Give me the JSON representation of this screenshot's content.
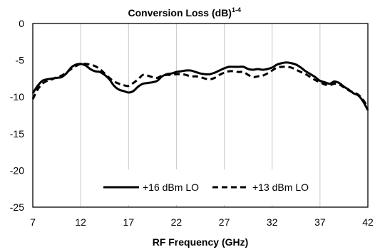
{
  "chart_data": {
    "type": "line",
    "title": "Conversion Loss (dB)",
    "title_superscript": "1-4",
    "xlabel": "RF Frequency (GHz)",
    "ylabel": "",
    "xlim": [
      7,
      42
    ],
    "ylim": [
      -25,
      0
    ],
    "x_ticks": [
      "7",
      "12",
      "17",
      "22",
      "27",
      "32",
      "37",
      "42"
    ],
    "y_ticks": [
      "0",
      "-5",
      "-10",
      "-15",
      "-20",
      "-25"
    ],
    "grid": "vertical",
    "legend_position": "lower-center",
    "series": [
      {
        "name": "+16 dBm LO",
        "style": "solid",
        "color": "#000000",
        "x": [
          7,
          7.5,
          8,
          8.5,
          9,
          9.5,
          10,
          10.5,
          11,
          11.5,
          12,
          12.5,
          13,
          13.5,
          14,
          14.5,
          15,
          15.5,
          16,
          16.5,
          17,
          17.5,
          18,
          18.5,
          19,
          19.5,
          20,
          20.5,
          21,
          21.5,
          22,
          22.5,
          23,
          23.5,
          24,
          24.5,
          25,
          25.5,
          26,
          26.5,
          27,
          27.5,
          28,
          28.5,
          29,
          29.5,
          30,
          30.5,
          31,
          31.5,
          32,
          32.5,
          33,
          33.5,
          34,
          34.5,
          35,
          35.5,
          36,
          36.5,
          37,
          37.5,
          38,
          38.5,
          39,
          39.5,
          40,
          40.5,
          41,
          41.5,
          42
        ],
        "y": [
          -9.5,
          -8.5,
          -7.8,
          -7.6,
          -7.5,
          -7.4,
          -7.3,
          -6.8,
          -6.0,
          -5.6,
          -5.5,
          -5.7,
          -6.2,
          -6.5,
          -6.6,
          -7.0,
          -7.6,
          -8.5,
          -9.0,
          -9.2,
          -9.4,
          -9.2,
          -8.6,
          -8.2,
          -8.1,
          -8.0,
          -7.8,
          -7.2,
          -6.9,
          -6.8,
          -6.6,
          -6.5,
          -6.4,
          -6.4,
          -6.6,
          -6.8,
          -6.9,
          -6.9,
          -6.7,
          -6.4,
          -6.1,
          -5.9,
          -5.9,
          -5.9,
          -5.9,
          -6.2,
          -6.3,
          -6.2,
          -6.3,
          -6.2,
          -6.0,
          -5.6,
          -5.4,
          -5.3,
          -5.4,
          -5.6,
          -6.0,
          -6.5,
          -6.9,
          -7.3,
          -7.8,
          -8.0,
          -8.2,
          -7.9,
          -8.1,
          -8.6,
          -9.0,
          -9.5,
          -9.8,
          -10.6,
          -11.8
        ]
      },
      {
        "name": "+13 dBm LO",
        "style": "dashed",
        "color": "#000000",
        "x": [
          7,
          7.5,
          8,
          8.5,
          9,
          9.5,
          10,
          10.5,
          11,
          11.5,
          12,
          12.5,
          13,
          13.5,
          14,
          14.5,
          15,
          15.5,
          16,
          16.5,
          17,
          17.5,
          18,
          18.5,
          19,
          19.5,
          20,
          20.5,
          21,
          21.5,
          22,
          22.5,
          23,
          23.5,
          24,
          24.5,
          25,
          25.5,
          26,
          26.5,
          27,
          27.5,
          28,
          28.5,
          29,
          29.5,
          30,
          30.5,
          31,
          31.5,
          32,
          32.5,
          33,
          33.5,
          34,
          34.5,
          35,
          35.5,
          36,
          36.5,
          37,
          37.5,
          38,
          38.5,
          39,
          39.5,
          40,
          40.5,
          41,
          41.5,
          42
        ],
        "y": [
          -10.3,
          -9.0,
          -8.2,
          -7.8,
          -7.6,
          -7.3,
          -7.1,
          -6.7,
          -6.2,
          -5.8,
          -5.5,
          -5.5,
          -5.6,
          -5.8,
          -6.2,
          -6.8,
          -7.4,
          -7.9,
          -8.2,
          -8.4,
          -8.5,
          -8.1,
          -7.6,
          -7.0,
          -7.1,
          -7.3,
          -7.4,
          -7.1,
          -7.0,
          -7.0,
          -6.9,
          -6.9,
          -7.0,
          -7.2,
          -7.2,
          -7.3,
          -7.5,
          -7.6,
          -7.4,
          -7.0,
          -6.7,
          -6.5,
          -6.5,
          -6.6,
          -6.6,
          -7.0,
          -7.3,
          -7.2,
          -7.1,
          -6.8,
          -6.4,
          -6.0,
          -5.9,
          -5.9,
          -6.0,
          -6.3,
          -6.6,
          -6.9,
          -7.3,
          -7.7,
          -8.0,
          -8.3,
          -8.4,
          -8.2,
          -8.3,
          -8.7,
          -9.1,
          -9.4,
          -9.7,
          -10.4,
          -11.4
        ]
      }
    ]
  }
}
